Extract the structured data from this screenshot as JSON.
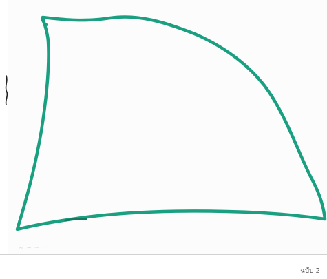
{
  "figure": {
    "caption": "ฉบับ 2",
    "bleed_through_text": "~ ~ ~ ~",
    "stroke_color": "#1aa080",
    "shape_icon": "hand-drawn-quadrilateral"
  }
}
